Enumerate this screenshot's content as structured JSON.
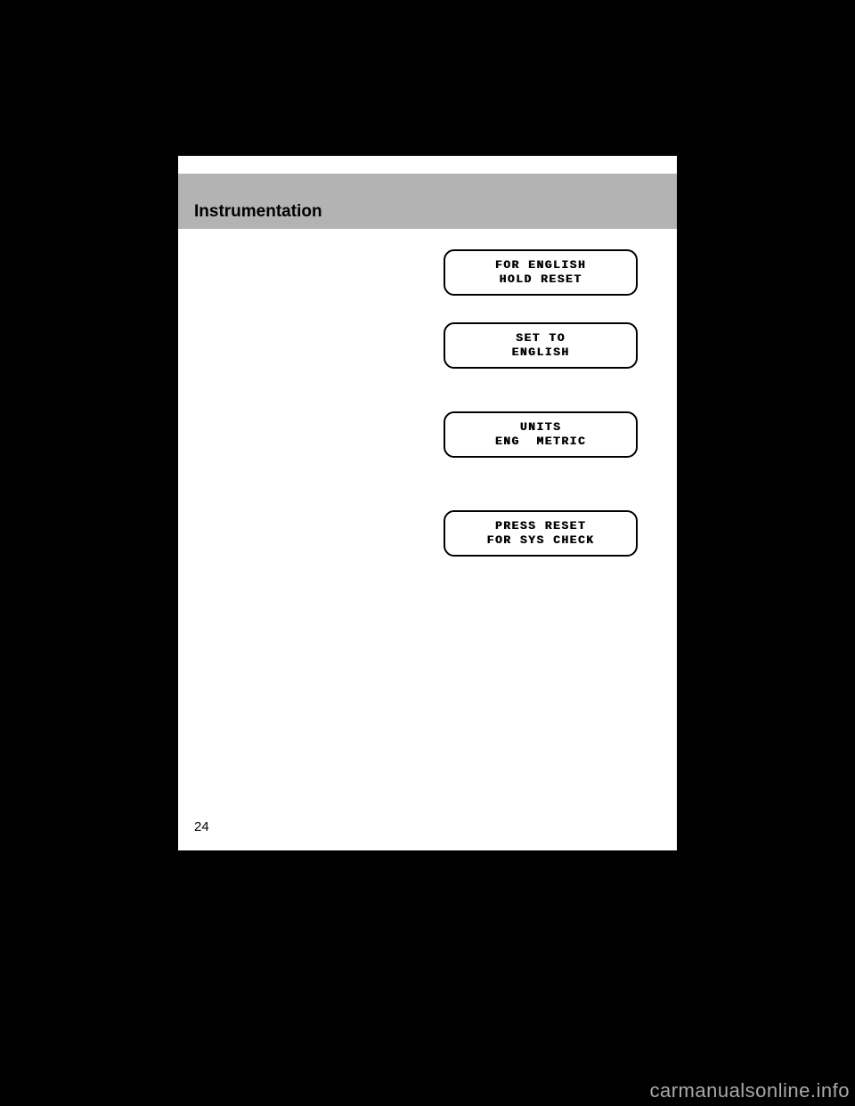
{
  "header": {
    "title": "Instrumentation"
  },
  "displays": {
    "d1_line1": "FOR ENGLISH",
    "d1_line2": "HOLD RESET",
    "d2_line1": "SET TO",
    "d2_line2": "ENGLISH",
    "d3_line1": "UNITS",
    "d3_line2": "ENG  METRIC",
    "d4_line1": "PRESS RESET",
    "d4_line2": "FOR SYS CHECK"
  },
  "footer": {
    "page_number": "24",
    "watermark": "carmanualsonline.info"
  }
}
